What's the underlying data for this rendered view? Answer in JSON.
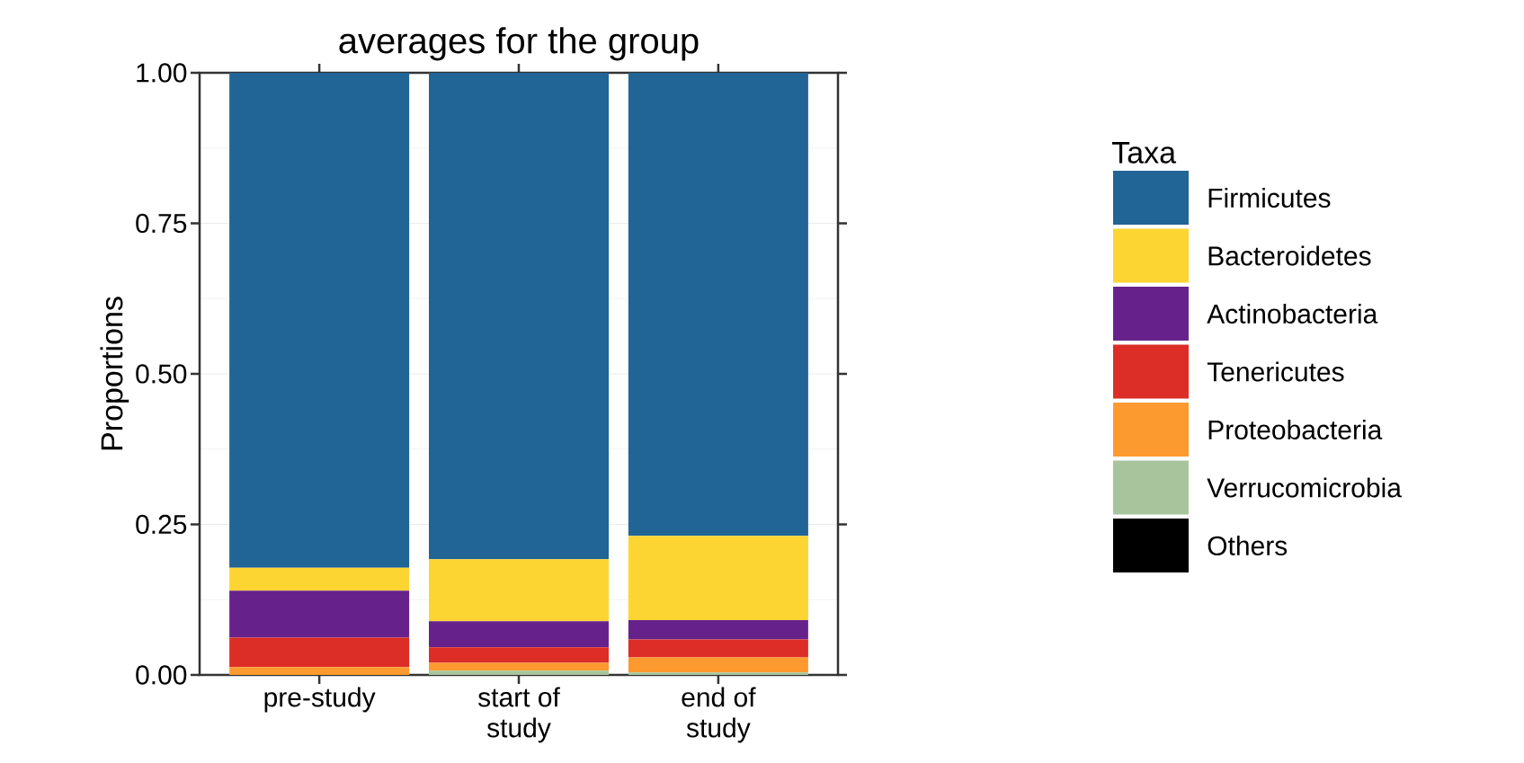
{
  "chart_data": {
    "type": "bar",
    "title": "averages for the group",
    "ylabel": "Proportions",
    "legend_title": "Taxa",
    "categories": [
      "pre-study",
      "start of\nstudy",
      "end of\nstudy"
    ],
    "stacked": true,
    "grid": "y",
    "legend": "right",
    "ylim": [
      0,
      1
    ],
    "yticks": [
      {
        "value": 0,
        "label": "0.00"
      },
      {
        "value": 0.25,
        "label": "0.25"
      },
      {
        "value": 0.5,
        "label": "0.50"
      },
      {
        "value": 0.75,
        "label": "0.75"
      },
      {
        "value": 1,
        "label": "1.00"
      }
    ],
    "series": [
      {
        "name": "Others",
        "color": "#000000",
        "values": [
          0,
          0,
          0
        ]
      },
      {
        "name": "Verrucomicrobia",
        "color": "#a8c49c",
        "values": [
          0,
          0.007,
          0.004
        ]
      },
      {
        "name": "Proteobacteria",
        "color": "#fd9a2f",
        "values": [
          0.013,
          0.013,
          0.025
        ]
      },
      {
        "name": "Tenericutes",
        "color": "#dc2d26",
        "values": [
          0.049,
          0.026,
          0.03
        ]
      },
      {
        "name": "Actinobacteria",
        "color": "#66228a",
        "values": [
          0.078,
          0.043,
          0.032
        ]
      },
      {
        "name": "Bacteroidetes",
        "color": "#fdd533",
        "values": [
          0.038,
          0.103,
          0.14
        ]
      },
      {
        "name": "Firmicutes",
        "color": "#216496",
        "values": [
          0.822,
          0.808,
          0.769
        ]
      }
    ]
  }
}
